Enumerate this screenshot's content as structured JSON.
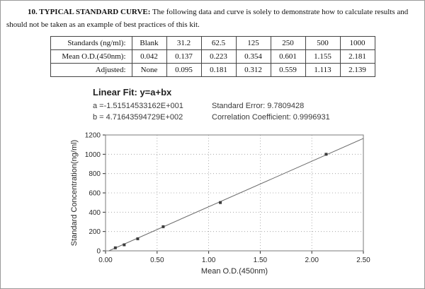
{
  "intro": {
    "heading": "10. TYPICAL STANDARD CURVE:",
    "text": " The following data and curve is solely to demonstrate how to calculate results and should not be taken as an example of best practices of this kit."
  },
  "table": {
    "rows": [
      {
        "label": "Standards (ng/ml):",
        "values": [
          "Blank",
          "31.2",
          "62.5",
          "125",
          "250",
          "500",
          "1000"
        ]
      },
      {
        "label": "Mean O.D.(450nm):",
        "values": [
          "0.042",
          "0.137",
          "0.223",
          "0.354",
          "0.601",
          "1.155",
          "2.181"
        ]
      },
      {
        "label": "Adjusted:",
        "values": [
          "None",
          "0.095",
          "0.181",
          "0.312",
          "0.559",
          "1.113",
          "2.139"
        ]
      }
    ]
  },
  "fit": {
    "title": "Linear Fit: y=a+bx",
    "a_line": "a =-1.51514533162E+001",
    "b_line": "b = 4.71643594729E+002",
    "standard_error": "Standard Error: 9.7809428",
    "correlation": "Correlation Coefficient: 0.9996931"
  },
  "chart_data": {
    "type": "scatter",
    "title": "",
    "xlabel": "Mean O.D.(450nm)",
    "ylabel": "Standard Concentration(ng/ml)",
    "xlim": [
      0,
      2.5
    ],
    "ylim": [
      0,
      1200
    ],
    "xticks": [
      0,
      0.5,
      1.0,
      1.5,
      2.0,
      2.5
    ],
    "xtick_labels": [
      "0.00",
      "0.50",
      "1.00",
      "1.50",
      "2.00",
      "2.50"
    ],
    "yticks": [
      0,
      200,
      400,
      600,
      800,
      1000,
      1200
    ],
    "ytick_labels": [
      "0",
      "200",
      "400",
      "600",
      "800",
      "1000",
      "1200"
    ],
    "grid": "dotted",
    "legend": "none",
    "points": [
      {
        "x": 0.095,
        "y": 31.2
      },
      {
        "x": 0.181,
        "y": 62.5
      },
      {
        "x": 0.312,
        "y": 125
      },
      {
        "x": 0.559,
        "y": 250
      },
      {
        "x": 1.113,
        "y": 500
      },
      {
        "x": 2.139,
        "y": 1000
      }
    ],
    "fit_line": {
      "a": -15.1514533162,
      "b": 471.643594729
    },
    "colors": {
      "line": "#6a6a6a",
      "point": "#3b3b3b",
      "grid": "#9a9a9a",
      "frame": "#7a7a7a",
      "text": "#2a2a2a"
    }
  }
}
